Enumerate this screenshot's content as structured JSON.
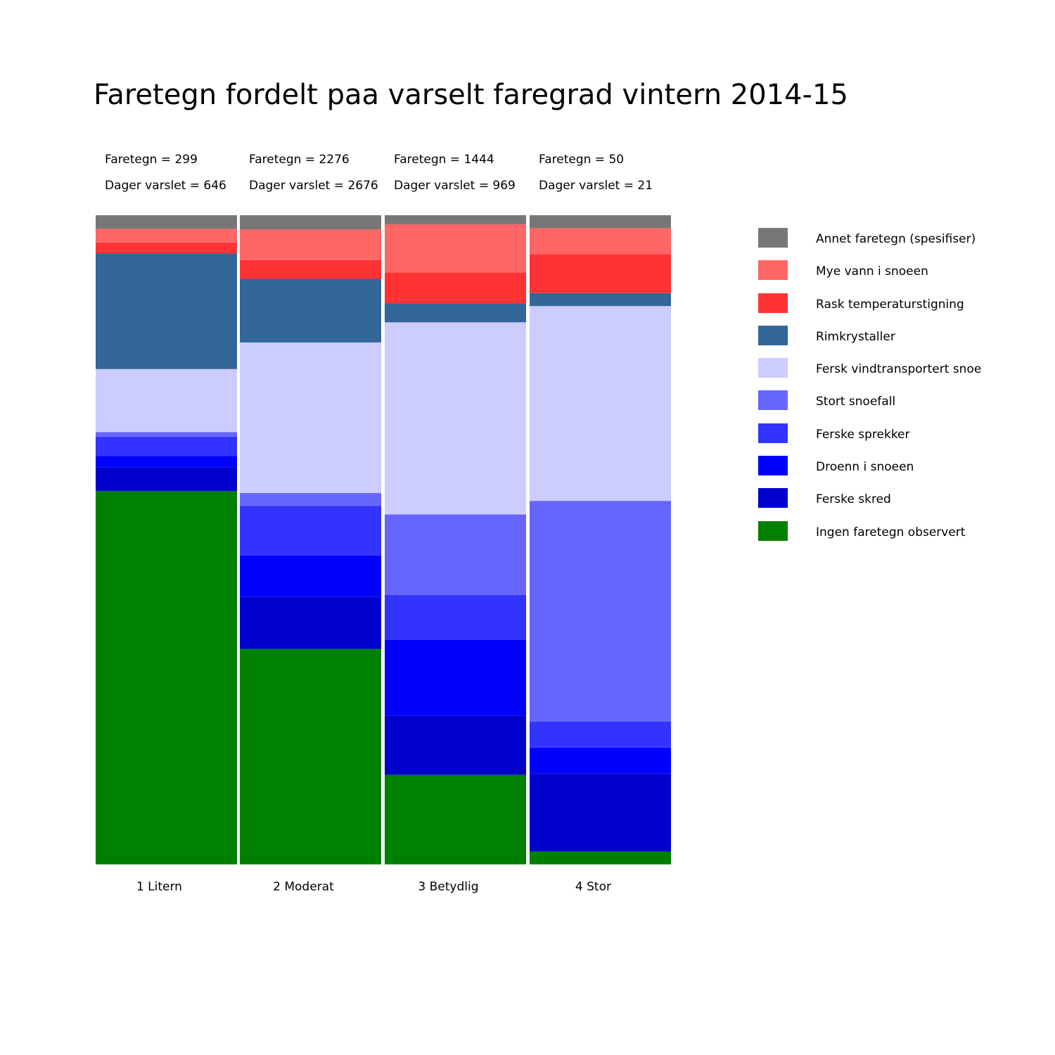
{
  "chart_data": {
    "type": "bar",
    "stacked": true,
    "normalized": true,
    "title": "Faretegn fordelt paa varselt faregrad vintern 2014-15",
    "xlabel": "",
    "ylabel": "",
    "ylim": [
      0,
      1
    ],
    "grid": false,
    "legend_position": "right",
    "categories": [
      "1 Litern",
      "2 Moderat",
      "3 Betydlig",
      "4 Stor"
    ],
    "category_info": [
      {
        "faretegn_label": "Faretegn = 299",
        "dager_label": "Dager varslet = 646"
      },
      {
        "faretegn_label": "Faretegn = 2276",
        "dager_label": "Dager varslet = 2676"
      },
      {
        "faretegn_label": "Faretegn = 1444",
        "dager_label": "Dager varslet = 969"
      },
      {
        "faretegn_label": "Faretegn = 50",
        "dager_label": "Dager varslet = 21"
      }
    ],
    "series": [
      {
        "name": "Ingen faretegn observert",
        "color": "#008000",
        "values": [
          0.575,
          0.332,
          0.138,
          0.02
        ]
      },
      {
        "name": "Ferske skred",
        "color": "#0000cd",
        "values": [
          0.037,
          0.08,
          0.091,
          0.12
        ]
      },
      {
        "name": "Droenn i snoeen",
        "color": "#0000ff",
        "values": [
          0.017,
          0.064,
          0.117,
          0.04
        ]
      },
      {
        "name": "Ferske sprekker",
        "color": "#3333ff",
        "values": [
          0.03,
          0.076,
          0.069,
          0.04
        ]
      },
      {
        "name": "Stort snoefall",
        "color": "#6666ff",
        "values": [
          0.007,
          0.02,
          0.124,
          0.34
        ]
      },
      {
        "name": "Fersk vindtransportert snoe",
        "color": "#ccccff",
        "values": [
          0.097,
          0.232,
          0.296,
          0.3
        ]
      },
      {
        "name": "Rimkrystaller",
        "color": "#336699",
        "values": [
          0.178,
          0.098,
          0.029,
          0.02
        ]
      },
      {
        "name": "Rask temperaturstigning",
        "color": "#ff3333",
        "values": [
          0.017,
          0.029,
          0.048,
          0.06
        ]
      },
      {
        "name": "Mye vann i snoeen",
        "color": "#ff6666",
        "values": [
          0.021,
          0.047,
          0.074,
          0.04
        ]
      },
      {
        "name": "Annet faretegn (spesifiser)",
        "color": "#777777",
        "values": [
          0.021,
          0.022,
          0.014,
          0.02
        ]
      }
    ]
  }
}
